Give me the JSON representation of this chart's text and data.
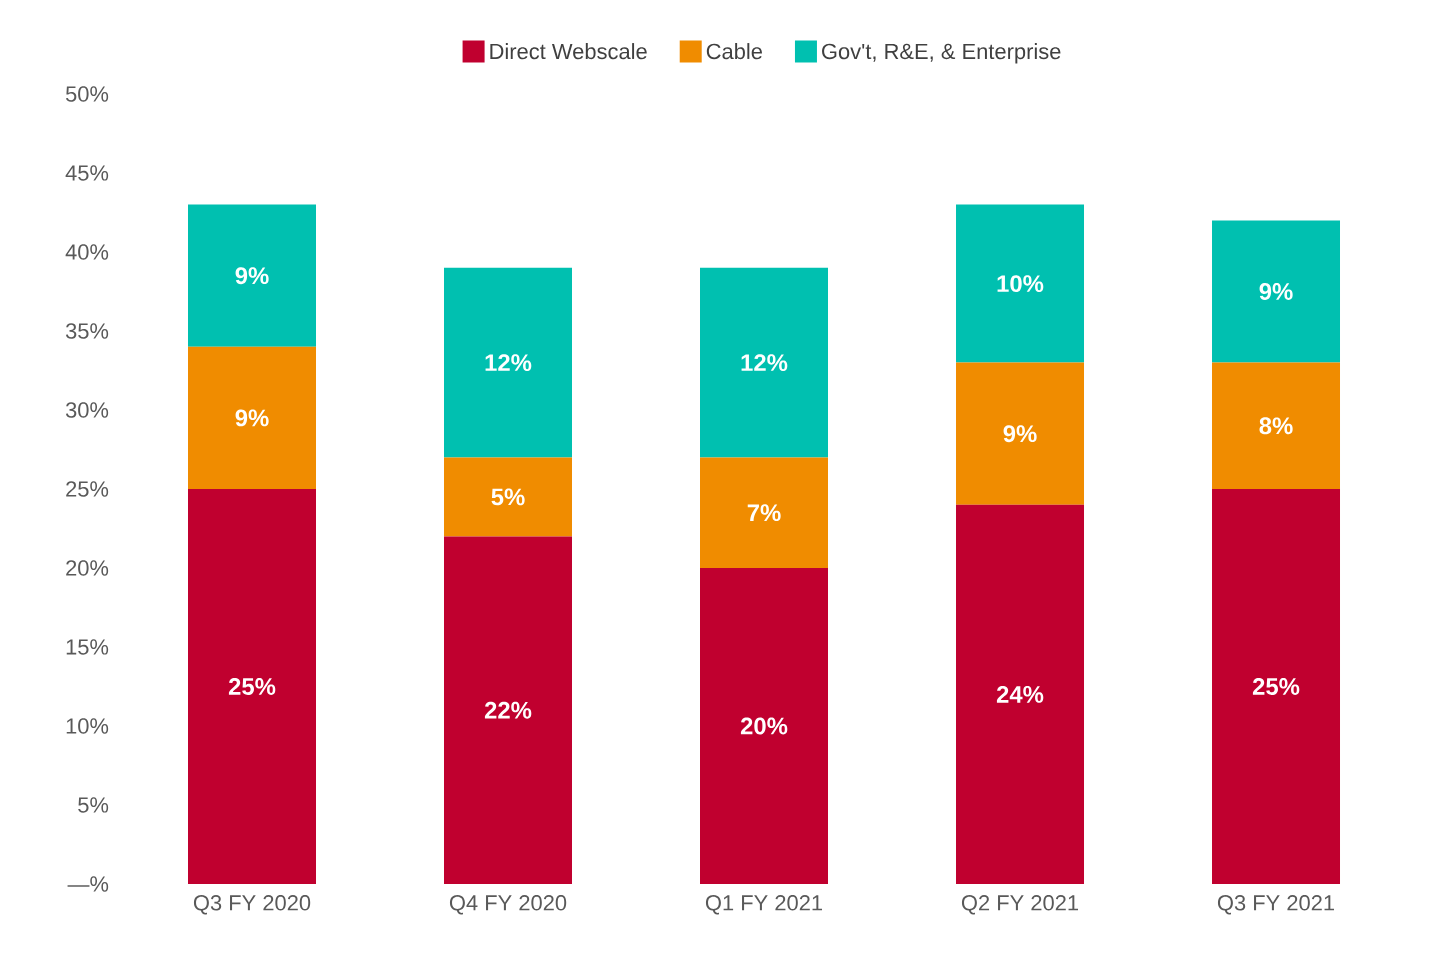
{
  "chart_data": {
    "type": "bar",
    "stacked": true,
    "categories": [
      "Q3 FY 2020",
      "Q4 FY 2020",
      "Q1 FY 2021",
      "Q2 FY 2021",
      "Q3 FY 2021"
    ],
    "series": [
      {
        "name": "Direct Webscale",
        "color": "#c0002f",
        "values": [
          25,
          22,
          20,
          24,
          25
        ],
        "value_labels": [
          "25%",
          "22%",
          "20%",
          "24%",
          "25%"
        ]
      },
      {
        "name": "Cable",
        "color": "#f08c00",
        "values": [
          9,
          5,
          7,
          9,
          8
        ],
        "value_labels": [
          "9%",
          "5%",
          "7%",
          "9%",
          "8%"
        ]
      },
      {
        "name": "Gov't, R&E, & Enterprise",
        "color": "#00c0b0",
        "values": [
          9,
          12,
          12,
          10,
          9
        ],
        "value_labels": [
          "9%",
          "12%",
          "12%",
          "10%",
          "9%"
        ]
      }
    ],
    "ylim": [
      0,
      50
    ],
    "yticks": [
      {
        "value": 0,
        "label": "—%"
      },
      {
        "value": 5,
        "label": "5%"
      },
      {
        "value": 10,
        "label": "10%"
      },
      {
        "value": 15,
        "label": "15%"
      },
      {
        "value": 20,
        "label": "20%"
      },
      {
        "value": 25,
        "label": "25%"
      },
      {
        "value": 30,
        "label": "30%"
      },
      {
        "value": 35,
        "label": "35%"
      },
      {
        "value": 40,
        "label": "40%"
      },
      {
        "value": 45,
        "label": "45%"
      },
      {
        "value": 50,
        "label": "50%"
      }
    ],
    "grid": false,
    "legend": "top"
  }
}
